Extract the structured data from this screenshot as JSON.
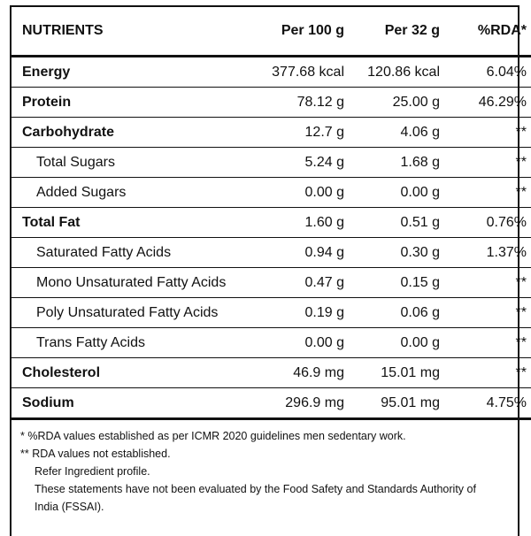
{
  "table": {
    "header": [
      "NUTRIENTS",
      "Per 100 g",
      "Per 32 g",
      "%RDA*"
    ],
    "rows": [
      [
        "Energy",
        "377.68 kcal",
        "120.86 kcal",
        "6.04%"
      ],
      [
        "Protein",
        "78.12 g",
        "25.00 g",
        "46.29%"
      ],
      [
        "Carbohydrate",
        "12.7 g",
        "4.06 g",
        "**"
      ],
      [
        "Total Sugars",
        "5.24 g",
        "1.68 g",
        "**"
      ],
      [
        "Added Sugars",
        "0.00 g",
        "0.00 g",
        "**"
      ],
      [
        "Total Fat",
        "1.60 g",
        "0.51 g",
        "0.76%"
      ],
      [
        "Saturated Fatty Acids",
        "0.94 g",
        "0.30 g",
        "1.37%"
      ],
      [
        "Mono Unsaturated Fatty Acids",
        "0.47 g",
        "0.15 g",
        "**"
      ],
      [
        "Poly Unsaturated Fatty Acids",
        "0.19 g",
        "0.06 g",
        "**"
      ],
      [
        "Trans Fatty Acids",
        "0.00 g",
        "0.00 g",
        "**"
      ],
      [
        "Cholesterol",
        "46.9 mg",
        "15.01 mg",
        "**"
      ],
      [
        "Sodium",
        "296.9 mg",
        "95.01 mg",
        "4.75%"
      ]
    ]
  },
  "footnotes": [
    "* %RDA values established as per ICMR 2020 guidelines men sedentary work.",
    "** RDA values not established.",
    "Refer Ingredient profile.",
    "These statements have not been evaluated by the Food Safety and Standards Authority of India (FSSAI)."
  ]
}
